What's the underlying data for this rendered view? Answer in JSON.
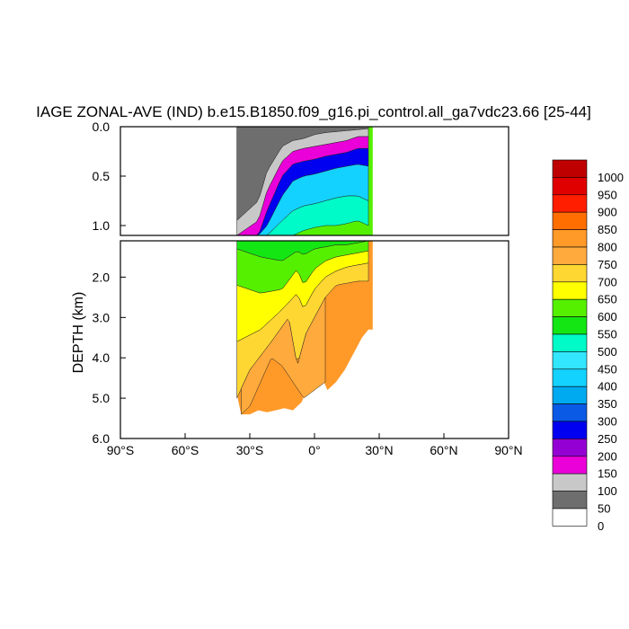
{
  "chart_data": {
    "type": "heatmap",
    "title": "IAGE ZONAL-AVE (IND) b.e15.B1850.f09_g16.pi_control.all_ga7vdc23.66 [25-44]",
    "ylabel": "DEPTH (km)",
    "xlabel": "",
    "x_ticks": [
      "90°S",
      "60°S",
      "30°S",
      "0°",
      "30°N",
      "60°N",
      "90°N"
    ],
    "x_tick_values": [
      -90,
      -60,
      -30,
      0,
      30,
      60,
      90
    ],
    "xlim": [
      -90,
      90
    ],
    "ylim_upper_km": [
      0,
      1.1
    ],
    "ylim_lower_km": [
      1.1,
      6.0
    ],
    "upper_y_ticks": [
      "0.0",
      "0.5",
      "1.0"
    ],
    "upper_y_tick_values": [
      0.0,
      0.5,
      1.0
    ],
    "lower_y_ticks": [
      "2.0",
      "3.0",
      "4.0",
      "5.0",
      "6.0"
    ],
    "lower_y_tick_values": [
      2.0,
      3.0,
      4.0,
      5.0,
      6.0
    ],
    "legend": {
      "placement": "right",
      "levels": [
        "0",
        "50",
        "100",
        "150",
        "200",
        "250",
        "300",
        "350",
        "400",
        "450",
        "500",
        "550",
        "600",
        "650",
        "700",
        "750",
        "800",
        "850",
        "900",
        "950",
        "1000"
      ],
      "colors": [
        "#ffffff",
        "#6e6e6e",
        "#c8c8c8",
        "#ea00d8",
        "#9400d3",
        "#0000f0",
        "#0a5ae6",
        "#00aaf0",
        "#14d2ff",
        "#32e6ff",
        "#00fac8",
        "#14e614",
        "#55f000",
        "#ffff00",
        "#ffd732",
        "#ffaa3c",
        "#ff9928",
        "#ff6e00",
        "#ff1e00",
        "#e10000",
        "#be0000"
      ]
    },
    "data_extent": {
      "lat_south": -36,
      "lat_north": 27,
      "max_depth_km": 5.4
    },
    "bands_upper": [
      {
        "level": "0-50",
        "lat": [
          -36,
          -26,
          -22,
          -15,
          -10,
          -5,
          0,
          5,
          10,
          15,
          20,
          25
        ],
        "top_km": [
          0,
          0,
          0,
          0,
          0,
          0,
          0,
          0,
          0,
          0,
          0,
          0
        ],
        "bottom_km": [
          0.95,
          0.75,
          0.45,
          0.2,
          0.14,
          0.12,
          0.08,
          0.06,
          0.05,
          0.04,
          0.03,
          0.02
        ]
      },
      {
        "level": "50-100",
        "lat": [
          -36,
          -26,
          -22,
          -15,
          -10,
          -5,
          0,
          5,
          10,
          15,
          20,
          25
        ],
        "bottom_km": [
          1.1,
          0.95,
          0.65,
          0.35,
          0.25,
          0.22,
          0.2,
          0.18,
          0.16,
          0.14,
          0.1,
          0.1
        ]
      },
      {
        "level": "100-150",
        "lat": [
          -36,
          -26,
          -22,
          -15,
          -10,
          -5,
          0,
          5,
          10,
          15,
          20,
          25
        ],
        "bottom_km": [
          1.1,
          1.1,
          0.85,
          0.5,
          0.38,
          0.35,
          0.33,
          0.3,
          0.28,
          0.26,
          0.22,
          0.22
        ]
      },
      {
        "level": "150-250",
        "lat": [
          -36,
          -26,
          -22,
          -15,
          -10,
          -5,
          0,
          5,
          10,
          15,
          20,
          25
        ],
        "bottom_km": [
          1.1,
          1.1,
          1.0,
          0.7,
          0.55,
          0.5,
          0.48,
          0.45,
          0.42,
          0.4,
          0.38,
          0.4
        ]
      },
      {
        "level": "250-400",
        "lat": [
          -36,
          -26,
          -22,
          -15,
          -10,
          -5,
          0,
          5,
          10,
          15,
          20,
          25
        ],
        "bottom_km": [
          1.1,
          1.1,
          1.1,
          0.95,
          0.85,
          0.8,
          0.78,
          0.75,
          0.72,
          0.7,
          0.7,
          0.75
        ]
      },
      {
        "level": "400-550",
        "lat": [
          -36,
          -26,
          -22,
          -15,
          -10,
          -5,
          0,
          5,
          10,
          15,
          20,
          25
        ],
        "bottom_km": [
          1.1,
          1.1,
          1.1,
          1.1,
          1.1,
          1.05,
          1.02,
          1.0,
          1.0,
          0.98,
          0.95,
          1.0
        ]
      }
    ],
    "bands_lower": [
      {
        "level": "450-550",
        "lat": [
          -36,
          -25,
          -15,
          -8,
          -5,
          0,
          5,
          10,
          15,
          20,
          25
        ],
        "bottom_km": [
          1.3,
          1.5,
          1.6,
          1.35,
          1.45,
          1.3,
          1.25,
          1.2,
          1.2,
          1.15,
          1.1
        ]
      },
      {
        "level": "550-650",
        "lat": [
          -36,
          -25,
          -15,
          -8,
          -5,
          0,
          5,
          10,
          15,
          20,
          25
        ],
        "bottom_km": [
          2.2,
          2.4,
          2.3,
          1.8,
          2.2,
          1.8,
          1.6,
          1.5,
          1.45,
          1.4,
          1.35
        ]
      },
      {
        "level": "650-700",
        "lat": [
          -36,
          -25,
          -15,
          -8,
          -5,
          0,
          5,
          10,
          15,
          20,
          25
        ],
        "bottom_km": [
          3.6,
          3.3,
          2.8,
          2.4,
          2.8,
          2.3,
          2.0,
          1.85,
          1.75,
          1.7,
          1.65
        ]
      },
      {
        "level": "700-750",
        "lat": [
          -36,
          -30,
          -20,
          -12,
          -8,
          -4,
          0,
          5,
          10,
          20,
          25
        ],
        "bottom_km": [
          5.0,
          4.3,
          3.6,
          3.0,
          4.2,
          3.4,
          3.0,
          2.5,
          2.2,
          2.1,
          2.1
        ]
      },
      {
        "level": "750-800",
        "lat": [
          -34,
          -30,
          -25,
          -20,
          -15,
          -10,
          -5,
          0,
          5
        ],
        "bottom_km": [
          5.4,
          5.2,
          4.6,
          4.0,
          4.2,
          4.6,
          5.0,
          4.8,
          4.6
        ]
      }
    ]
  }
}
